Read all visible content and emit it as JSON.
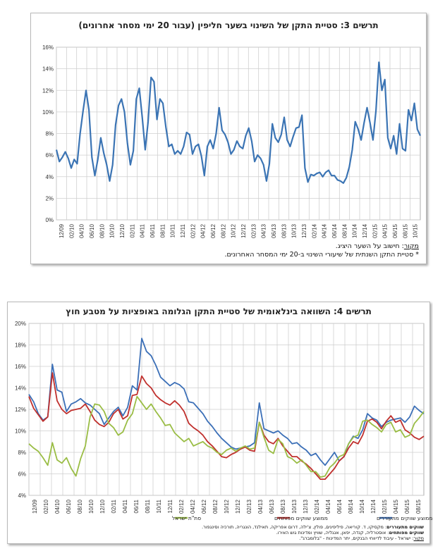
{
  "chart_data": [
    {
      "type": "line",
      "title": "תרשים 3: סטיית התקן של השינוי בשער חליפין (עבור 20 ימי מסחר אחרונים)",
      "xlabel": "",
      "ylabel": "",
      "ylim": [
        0,
        16
      ],
      "y_ticks": [
        "0%",
        "2%",
        "4%",
        "6%",
        "8%",
        "10%",
        "12%",
        "14%",
        "16%"
      ],
      "x_ticks": [
        "12/09",
        "02/10",
        "04/10",
        "06/10",
        "08/10",
        "10/10",
        "12/10",
        "02/11",
        "04/11",
        "06/11",
        "08/11",
        "10/11",
        "12/11",
        "02/12",
        "04/12",
        "06/12",
        "08/12",
        "10/12",
        "12/12",
        "02/13",
        "04/13",
        "06/13",
        "08/13",
        "10/13",
        "12/13",
        "02/14",
        "04/14",
        "06/14",
        "08/14",
        "10/14",
        "12/14",
        "02/15",
        "04/15",
        "06/15",
        "08/15",
        "10/15"
      ],
      "grid": true,
      "legend": "none",
      "color": "#3b74b4",
      "series": [
        {
          "values": [
            6.5,
            5.4,
            5.8,
            6.3,
            5.7,
            4.8,
            5.6,
            5.2,
            8.0,
            10.1,
            12.0,
            10.2,
            5.8,
            4.1,
            5.6,
            7.6,
            6.2,
            5.1,
            3.6,
            5.1,
            8.8,
            10.6,
            11.2,
            10.0,
            7.1,
            5.1,
            6.4,
            11.2,
            12.2,
            9.5,
            6.5,
            9.1,
            13.2,
            12.8,
            9.3,
            11.2,
            10.8,
            8.6,
            6.8,
            7.0,
            6.1,
            6.4,
            6.1,
            6.8,
            8.1,
            7.9,
            6.1,
            6.8,
            7.0,
            5.9,
            4.1,
            6.8,
            7.4,
            6.6,
            8.0,
            10.4,
            8.3,
            7.9,
            7.2,
            6.1,
            6.5,
            7.3,
            6.8,
            6.6,
            7.8,
            8.5,
            7.3,
            5.4,
            6.0,
            5.7,
            5.1,
            3.6,
            5.2,
            8.9,
            7.6,
            7.2,
            7.9,
            9.5,
            7.4,
            6.8,
            7.7,
            8.5,
            8.6,
            9.7,
            4.8,
            3.5,
            4.2,
            4.1,
            4.3,
            4.4,
            4.0,
            4.4,
            4.6,
            4.1,
            4.1,
            3.7,
            3.6,
            3.4,
            3.9,
            4.9,
            6.5,
            9.1,
            8.4,
            7.4,
            9.0,
            10.4,
            9.0,
            7.4,
            10.1,
            14.6,
            12.0,
            13.0,
            7.6,
            6.6,
            7.8,
            6.1,
            8.9,
            6.6,
            6.4,
            10.2,
            9.2,
            10.8,
            8.4,
            7.8
          ]
        }
      ]
    },
    {
      "type": "line",
      "title": "תרשים 4: השוואה בינלאומית של סטיית התקן הגלומה באופציות על מטבע חוץ",
      "xlabel": "",
      "ylabel": "",
      "ylim": [
        4,
        20
      ],
      "y_ticks": [
        "4%",
        "6%",
        "8%",
        "10%",
        "12%",
        "14%",
        "16%",
        "18%",
        "20%"
      ],
      "x_ticks": [
        "12/09",
        "02/10",
        "04/10",
        "06/10",
        "08/10",
        "10/10",
        "12/10",
        "02/11",
        "04/11",
        "06/11",
        "08/11",
        "10/11",
        "12/11",
        "02/12",
        "04/12",
        "06/12",
        "08/12",
        "10/12",
        "12/12",
        "02/13",
        "04/13",
        "06/13",
        "08/13",
        "10/13",
        "12/13",
        "02/14",
        "04/14",
        "06/14",
        "08/14",
        "10/14",
        "12/14",
        "02/15",
        "04/15",
        "06/15",
        "08/15"
      ],
      "grid": true,
      "legend": "bottom",
      "series": [
        {
          "name": "ממוצע שווקים מתעוררים",
          "color": "#3b6fb7",
          "values": [
            13.4,
            12.7,
            11.6,
            11.0,
            11.3,
            16.2,
            13.8,
            13.6,
            11.8,
            12.5,
            12.7,
            13.0,
            12.6,
            12.4,
            12.0,
            11.6,
            10.6,
            11.2,
            11.8,
            12.2,
            11.4,
            12.2,
            14.2,
            13.8,
            18.6,
            17.4,
            17.0,
            16.1,
            15.0,
            14.6,
            14.2,
            14.5,
            14.3,
            13.9,
            12.7,
            12.6,
            12.1,
            11.6,
            10.9,
            10.4,
            9.8,
            9.3,
            8.9,
            8.5,
            8.3,
            8.4,
            8.5,
            8.6,
            8.9,
            12.6,
            10.2,
            10.0,
            9.8,
            10.0,
            9.6,
            9.3,
            8.8,
            8.9,
            8.5,
            8.2,
            7.7,
            7.9,
            7.3,
            6.8,
            7.4,
            8.0,
            7.2,
            7.6,
            8.8,
            9.5,
            9.3,
            10.1,
            11.6,
            11.2,
            11.0,
            10.4,
            10.8,
            11.0,
            11.1,
            11.2,
            10.8,
            11.3,
            12.3,
            11.9,
            11.6
          ]
        },
        {
          "name": "ממוצע שווקים מפותחים",
          "color": "#c0302d",
          "values": [
            13.2,
            12.1,
            11.5,
            10.9,
            11.3,
            15.4,
            12.8,
            12.0,
            11.6,
            11.9,
            12.0,
            12.1,
            12.5,
            11.8,
            11.0,
            10.6,
            10.4,
            10.8,
            11.6,
            12.0,
            11.1,
            11.4,
            13.3,
            13.4,
            15.1,
            14.4,
            14.0,
            13.3,
            12.9,
            12.6,
            12.4,
            12.8,
            12.4,
            11.8,
            10.7,
            10.3,
            10.0,
            9.6,
            9.0,
            8.6,
            8.1,
            7.6,
            7.5,
            7.8,
            8.0,
            8.3,
            8.5,
            8.2,
            8.1,
            10.8,
            9.6,
            9.0,
            8.8,
            9.3,
            8.6,
            8.1,
            7.6,
            7.6,
            7.2,
            6.9,
            6.5,
            6.0,
            5.5,
            5.5,
            6.0,
            6.5,
            7.2,
            7.6,
            8.4,
            9.0,
            8.8,
            9.6,
            10.9,
            11.1,
            10.8,
            10.2,
            10.9,
            11.4,
            10.8,
            11.0,
            10.1,
            9.8,
            9.4,
            9.2,
            9.5
          ]
        },
        {
          "name": "סת\"ת ישראל",
          "color": "#9abd45",
          "values": [
            8.8,
            8.4,
            8.1,
            7.5,
            6.8,
            8.9,
            7.3,
            7.0,
            7.5,
            6.5,
            5.8,
            7.4,
            8.6,
            11.3,
            12.5,
            12.4,
            11.8,
            10.7,
            10.3,
            9.6,
            9.9,
            11.0,
            11.6,
            13.2,
            12.6,
            12.0,
            12.5,
            11.8,
            11.2,
            10.5,
            10.6,
            9.8,
            9.4,
            9.0,
            9.3,
            8.6,
            8.8,
            9.0,
            8.6,
            8.4,
            8.0,
            7.8,
            8.2,
            8.4,
            8.1,
            8.4,
            8.6,
            8.3,
            8.4,
            10.8,
            9.4,
            8.2,
            7.9,
            9.2,
            8.8,
            7.6,
            7.4,
            7.0,
            7.3,
            6.8,
            6.2,
            6.2,
            5.7,
            5.8,
            6.6,
            7.0,
            7.6,
            7.8,
            8.8,
            9.4,
            9.6,
            10.9,
            11.0,
            10.6,
            10.3,
            9.9,
            10.6,
            10.8,
            9.9,
            10.1,
            9.4,
            9.6,
            10.7,
            11.2,
            11.8
          ]
        }
      ]
    }
  ],
  "notes1": {
    "line1_label": "מקור",
    "line1_text": ": חישוב על השער היציג.",
    "line2": "* סטיית התקן השנתית של שיעורי השינוי ב-20 ימי המסחר האחרונים."
  },
  "notes2": {
    "line1_label": "שווקים מתעוררים",
    "line1_text": ": מקסיקו, ד. קוריאה, פיליפינים, פולין, צ'ילה, דרום אפריקה, תאילנד, הונגריה, תורכיה וסינגפור.",
    "line2_label": "שווקים מפותחים",
    "line2_text": ": אוסטרליה, קנדה, יפאן, אנגליה, שוויץ ומדינות גוש האירו.",
    "line3_label": "מקור",
    "line3_text": ": ישראל - עיבוד לדיווחי הבנקים, יתר המדינות - \"בלומברג\"."
  }
}
